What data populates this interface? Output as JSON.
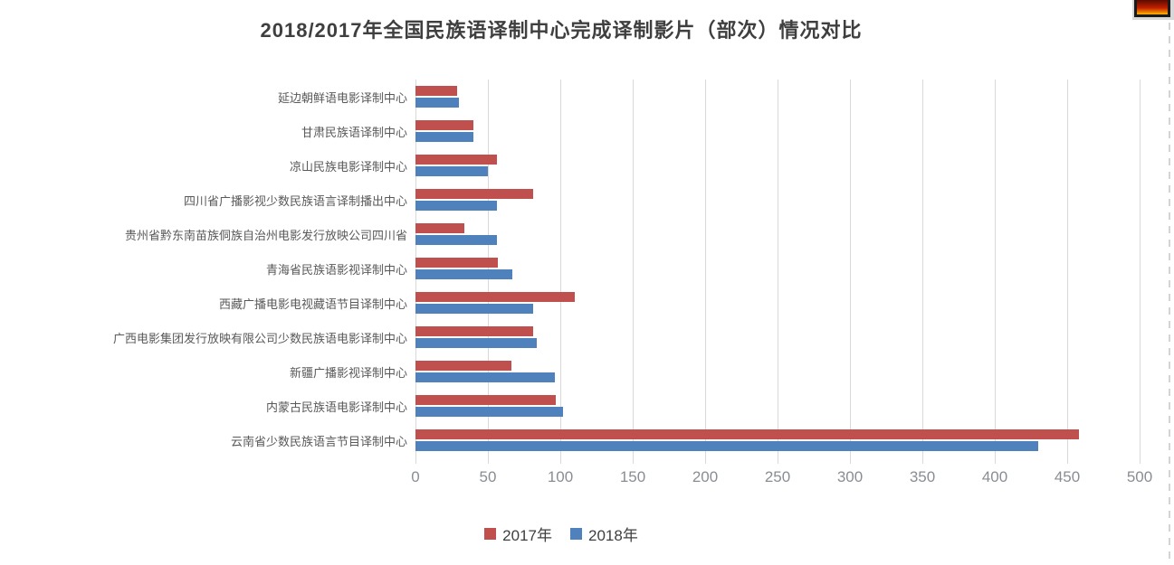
{
  "page": {
    "background": "#FFFFFF"
  },
  "chart_data": {
    "type": "bar",
    "orientation": "horizontal",
    "title": "2018/2017年全国民族语译制中心完成译制影片（部次）情况对比",
    "categories": [
      "延边朝鲜语电影译制中心",
      "甘肃民族语译制中心",
      "凉山民族电影译制中心",
      "四川省广播影视少数民族语言译制播出中心",
      "贵州省黔东南苗族侗族自治州电影发行放映公司四川省",
      "青海省民族语影视译制中心",
      "西藏广播电影电视藏语节目译制中心",
      "广西电影集团发行放映有限公司少数民族语电影译制中心",
      "新疆广播影视译制中心",
      "内蒙古民族语电影译制中心",
      "云南省少数民族语言节目译制中心"
    ],
    "series": [
      {
        "name": "2017年",
        "color": "#C0504D",
        "values": [
          29,
          40,
          56,
          81,
          34,
          57,
          110,
          81,
          66,
          97,
          458
        ]
      },
      {
        "name": "2018年",
        "color": "#4F81BD",
        "values": [
          30,
          40,
          50,
          56,
          56,
          67,
          81,
          84,
          96,
          102,
          430
        ]
      }
    ],
    "xlim": [
      0,
      500
    ],
    "x_ticks": [
      0,
      50,
      100,
      150,
      200,
      250,
      300,
      350,
      400,
      450,
      500
    ],
    "grid": true,
    "legend_position": "bottom",
    "colors": {
      "gridline": "#D9D9D9",
      "tick_label": "#8A8D93",
      "category_label": "#595959",
      "title": "#3F3F3F",
      "legend_text": "#3F3F3F"
    }
  },
  "decorations": {
    "corner_swatch": {
      "frame_color": "#D8D8D8",
      "border_color": "#1A1A1A",
      "gradient_start": "#5A0B00",
      "gradient_mid": "#C22000",
      "gradient_end": "#FFB400"
    },
    "page_break_dash_color": "#D4D4D4"
  }
}
